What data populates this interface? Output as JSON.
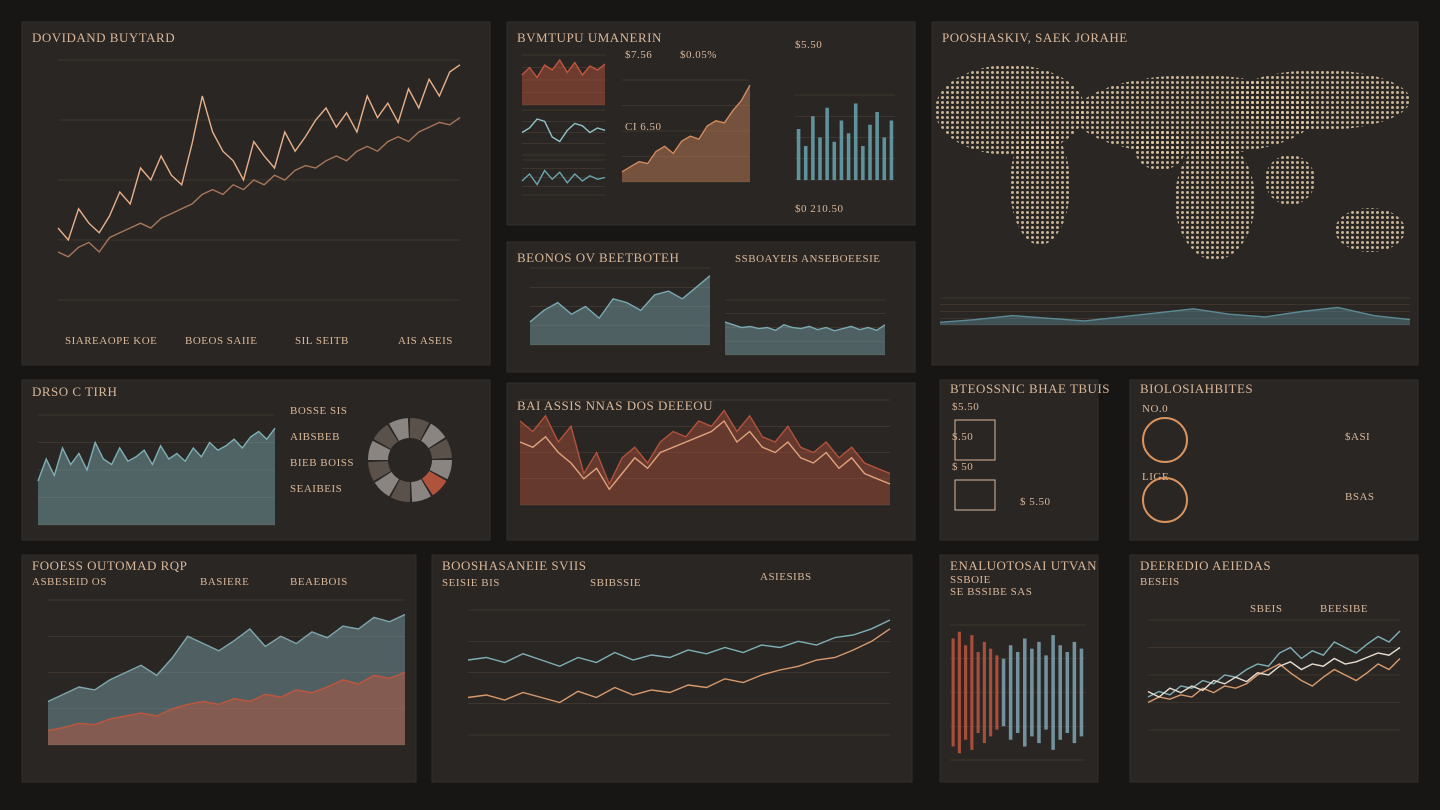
{
  "panels": [
    {
      "title": "DOVIDAND BUYTARD",
      "labels": [
        "SIAREAOPE KOE",
        "BOEOS SAIIE",
        "SIL SEITB",
        "AIS ASEIS"
      ],
      "charts": [
        {
          "kind": "line",
          "color": "#e8b08a",
          "values": [
            30,
            25,
            38,
            32,
            28,
            35,
            45,
            40,
            55,
            50,
            60,
            52,
            48,
            65,
            85,
            70,
            62,
            58,
            50,
            66,
            60,
            55,
            70,
            62,
            68,
            75,
            80,
            72,
            78,
            70,
            85,
            76,
            82,
            74,
            88,
            80,
            92,
            85,
            95,
            98
          ]
        },
        {
          "kind": "line",
          "color": "#a8765a",
          "values": [
            20,
            18,
            22,
            24,
            20,
            26,
            28,
            30,
            32,
            30,
            34,
            36,
            38,
            40,
            44,
            46,
            44,
            48,
            46,
            50,
            48,
            52,
            50,
            54,
            56,
            55,
            58,
            60,
            58,
            62,
            64,
            62,
            66,
            68,
            66,
            70,
            72,
            74,
            73,
            76
          ]
        }
      ]
    },
    {
      "title": "BVMTUPU UMANERIN",
      "labels": [
        "$7.56",
        "$0.05%",
        "$5.50",
        "CI 6.50",
        "$0 210.50"
      ],
      "charts": [
        {
          "kind": "area",
          "color": "#c0563e",
          "values": [
            60,
            75,
            55,
            80,
            70,
            90,
            65,
            85,
            60,
            78,
            70,
            82
          ]
        },
        {
          "kind": "line",
          "color": "#8fc3c8",
          "values": [
            50,
            60,
            80,
            75,
            40,
            30,
            55,
            70,
            65,
            50,
            60,
            55
          ]
        },
        {
          "kind": "line",
          "color": "#6aa6b0",
          "values": [
            40,
            60,
            30,
            70,
            45,
            65,
            35,
            60,
            40,
            55,
            45,
            50
          ]
        },
        {
          "kind": "area",
          "color": "#d08a60",
          "values": [
            10,
            15,
            20,
            18,
            30,
            35,
            28,
            40,
            45,
            42,
            55,
            60,
            58,
            70,
            80,
            95
          ]
        },
        {
          "kind": "bars",
          "color": "#6aa6b0",
          "values": [
            60,
            40,
            75,
            50,
            85,
            45,
            70,
            55,
            90,
            40,
            65,
            80,
            50,
            70
          ]
        }
      ]
    },
    {
      "title": "POOSHASKIV, SAEK JORAHE",
      "labels": [],
      "charts": [
        {
          "kind": "area",
          "color": "#5c8a94",
          "values": [
            10,
            20,
            35,
            25,
            15,
            30,
            45,
            60,
            40,
            30,
            50,
            65,
            35,
            20
          ]
        }
      ]
    },
    {
      "title": "BEONOS OV BEETBOTEH",
      "labels": [
        "SSBOAYEIS ANSEBOEESIE"
      ],
      "charts": [
        {
          "kind": "area",
          "color": "#7aa8b0",
          "values": [
            30,
            45,
            55,
            40,
            50,
            35,
            60,
            55,
            45,
            65,
            70,
            60,
            75,
            90
          ]
        },
        {
          "kind": "area",
          "color": "#7aa8b0",
          "values": [
            60,
            55,
            50,
            52,
            48,
            50,
            45,
            55,
            50,
            48,
            52,
            46,
            50,
            44,
            48,
            52,
            46,
            50,
            45,
            55
          ]
        }
      ]
    },
    {
      "title": "BAI ASSIS NNAS DOS DEEEOU",
      "labels": [],
      "charts": [
        {
          "kind": "area",
          "color": "#b0523c",
          "values": [
            80,
            70,
            85,
            60,
            75,
            30,
            50,
            20,
            45,
            55,
            40,
            60,
            70,
            65,
            80,
            75,
            90,
            70,
            85,
            65,
            60,
            75,
            55,
            50,
            60,
            45,
            55,
            40,
            35,
            30
          ]
        },
        {
          "kind": "line",
          "color": "#e0a27c",
          "values": [
            60,
            55,
            65,
            50,
            40,
            25,
            35,
            15,
            30,
            45,
            35,
            50,
            55,
            60,
            65,
            70,
            80,
            60,
            70,
            55,
            50,
            60,
            45,
            40,
            50,
            35,
            45,
            30,
            25,
            20
          ]
        }
      ]
    },
    {
      "title": "DRSO C TIRH",
      "labels": [
        "BOSSE SIS",
        "AIBSBEB",
        "BIEB BOISS",
        "SEAIBEIS"
      ],
      "charts": [
        {
          "kind": "area",
          "color": "#7fb0b6",
          "values": [
            40,
            60,
            45,
            70,
            55,
            65,
            50,
            75,
            60,
            55,
            70,
            58,
            62,
            68,
            55,
            72,
            60,
            65,
            58,
            70,
            62,
            75,
            68,
            72,
            78,
            70,
            80,
            85,
            78,
            88
          ]
        }
      ]
    },
    {
      "title": "BTEOSSNIC BHAE TBUIS",
      "labels": [
        "$5.50",
        "$.50",
        "$ 50",
        "$ 5.50"
      ],
      "charts": []
    },
    {
      "title": "BIOLOSIAHBITES",
      "labels": [
        "NO.0",
        "LIGE",
        "$ASI",
        "BSAS"
      ],
      "charts": []
    },
    {
      "title": "FOOESS OUTOMAD RQP",
      "labels": [
        "ASBESEID OS",
        "BASIERE",
        "BEAEBOIS"
      ],
      "charts": [
        {
          "kind": "area",
          "color": "#7fa6ac",
          "values": [
            30,
            35,
            40,
            38,
            45,
            50,
            55,
            48,
            60,
            75,
            70,
            65,
            72,
            80,
            68,
            75,
            70,
            78,
            74,
            82,
            80,
            88,
            85,
            90
          ]
        },
        {
          "kind": "area",
          "color": "#c0563e",
          "values": [
            10,
            12,
            15,
            14,
            18,
            20,
            22,
            20,
            25,
            28,
            30,
            28,
            32,
            30,
            35,
            33,
            38,
            36,
            40,
            45,
            42,
            48,
            46,
            50
          ]
        }
      ]
    },
    {
      "title": "BOOSHASANEIE SVIIS",
      "labels": [
        "SEISIE BIS",
        "SBIBSSIE",
        "ASIESIBS"
      ],
      "charts": [
        {
          "kind": "line",
          "color": "#7fb0b6",
          "values": [
            60,
            62,
            58,
            65,
            60,
            55,
            62,
            58,
            66,
            60,
            64,
            62,
            68,
            65,
            70,
            66,
            72,
            70,
            75,
            72,
            78,
            80,
            85,
            92
          ]
        },
        {
          "kind": "line",
          "color": "#d89a6c",
          "values": [
            30,
            32,
            28,
            34,
            30,
            26,
            35,
            30,
            38,
            32,
            36,
            34,
            40,
            38,
            45,
            42,
            48,
            52,
            55,
            60,
            62,
            68,
            75,
            85
          ]
        }
      ]
    },
    {
      "title": "ENALUOTOSAI UTVAN",
      "labels": [
        "SSBOIE",
        "SE BSSIBE SAS"
      ],
      "charts": [
        {
          "kind": "bars",
          "color": "#c0563e",
          "values": [
            80,
            90,
            70,
            85,
            60,
            75,
            65,
            55
          ]
        },
        {
          "kind": "bars",
          "color": "#7fa6b4",
          "values": [
            50,
            70,
            60,
            80,
            65,
            75,
            55,
            85,
            70,
            60,
            75,
            65
          ]
        }
      ]
    },
    {
      "title": "DEEREDIO AEIEDAS",
      "labels": [
        "BESEIS",
        "SBEIS",
        "BEESIBE"
      ],
      "charts": [
        {
          "kind": "line",
          "color": "#7fb0b6",
          "values": [
            30,
            35,
            32,
            40,
            38,
            45,
            42,
            50,
            48,
            55,
            60,
            58,
            70,
            75,
            65,
            72,
            68,
            80,
            75,
            70,
            78,
            85,
            80,
            90
          ]
        },
        {
          "kind": "line",
          "color": "#d89a6c",
          "values": [
            25,
            30,
            28,
            32,
            30,
            38,
            34,
            40,
            38,
            42,
            50,
            55,
            60,
            52,
            45,
            40,
            48,
            55,
            50,
            45,
            52,
            60,
            55,
            65
          ]
        },
        {
          "kind": "line",
          "color": "#e6ddd0",
          "values": [
            35,
            30,
            38,
            34,
            40,
            36,
            45,
            42,
            48,
            44,
            52,
            50,
            58,
            62,
            55,
            60,
            58,
            65,
            60,
            62,
            66,
            70,
            68,
            75
          ]
        }
      ]
    }
  ]
}
